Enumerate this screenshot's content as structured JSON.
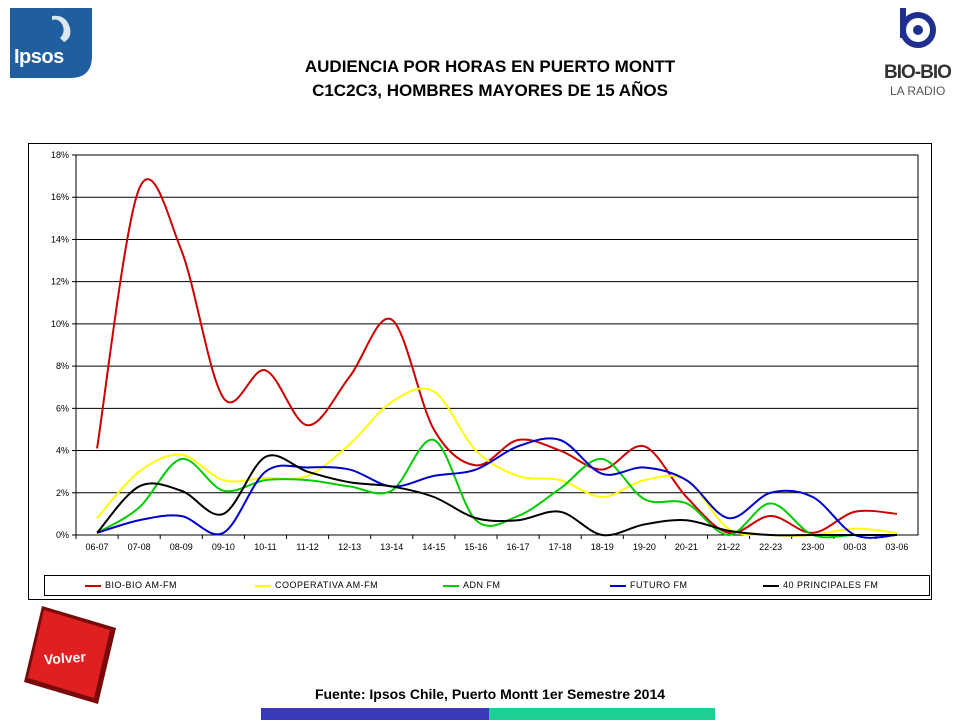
{
  "header": {
    "title_line1": "AUDIENCIA POR HORAS EN PUERTO MONTT",
    "title_line2": "C1C2C3, HOMBRES MAYORES DE 15 AÑOS"
  },
  "logos": {
    "ipsos": "Ipsos",
    "biobio_name": "BIO-BIO",
    "biobio_sub": "LA RADIO"
  },
  "footer": {
    "source": "Fuente: Ipsos Chile, Puerto Montt 1er Semestre 2014",
    "volver_label": "Volver"
  },
  "colors": {
    "ipsos_blue": "#1f5f9f",
    "volver_red": "#e02020",
    "bar_blue": "#3a3ab8",
    "bar_teal": "#1ecf93"
  },
  "chart_data": {
    "type": "line",
    "categories": [
      "06-07",
      "07-08",
      "08-09",
      "09-10",
      "10-11",
      "11-12",
      "12-13",
      "13-14",
      "14-15",
      "15-16",
      "16-17",
      "17-18",
      "18-19",
      "19-20",
      "20-21",
      "21-22",
      "22-23",
      "23-00",
      "00-03",
      "03-06"
    ],
    "ylim": [
      0,
      18
    ],
    "yticks": [
      "0%",
      "2%",
      "4%",
      "6%",
      "8%",
      "10%",
      "12%",
      "14%",
      "16%",
      "18%"
    ],
    "grid": true,
    "legend_position": "bottom",
    "series": [
      {
        "name": "BIO-BIO AM-FM",
        "color": "#cc0000",
        "values": [
          4.1,
          16.4,
          13.5,
          6.5,
          7.8,
          5.2,
          7.5,
          10.2,
          5.0,
          3.3,
          4.5,
          4.0,
          3.1,
          4.2,
          1.8,
          0.1,
          0.9,
          0.1,
          1.1,
          1.0
        ]
      },
      {
        "name": "COOPERATIVA AM-FM",
        "color": "#ffff00",
        "values": [
          0.8,
          3.0,
          3.8,
          2.6,
          2.7,
          2.8,
          4.3,
          6.3,
          6.8,
          4.0,
          2.8,
          2.6,
          1.8,
          2.6,
          2.6,
          0.3,
          0.0,
          0.0,
          0.3,
          0.1
        ]
      },
      {
        "name": "ADN FM",
        "color": "#00cc00",
        "values": [
          0.1,
          1.3,
          3.6,
          2.1,
          2.6,
          2.6,
          2.3,
          2.1,
          4.5,
          0.7,
          0.9,
          2.2,
          3.6,
          1.7,
          1.5,
          0.0,
          1.5,
          0.0,
          0.0,
          0.0
        ]
      },
      {
        "name": "FUTURO FM",
        "color": "#0000cc",
        "values": [
          0.1,
          0.7,
          0.9,
          0.1,
          3.0,
          3.2,
          3.1,
          2.3,
          2.8,
          3.1,
          4.2,
          4.5,
          2.9,
          3.2,
          2.6,
          0.8,
          2.0,
          1.8,
          0.0,
          0.0
        ]
      },
      {
        "name": "40 PRINCIPALES FM",
        "color": "#000000",
        "values": [
          0.1,
          2.3,
          2.1,
          1.0,
          3.7,
          3.0,
          2.5,
          2.3,
          1.8,
          0.8,
          0.7,
          1.1,
          0.0,
          0.5,
          0.7,
          0.2,
          0.0,
          0.0,
          0.0,
          0.0
        ]
      }
    ]
  }
}
